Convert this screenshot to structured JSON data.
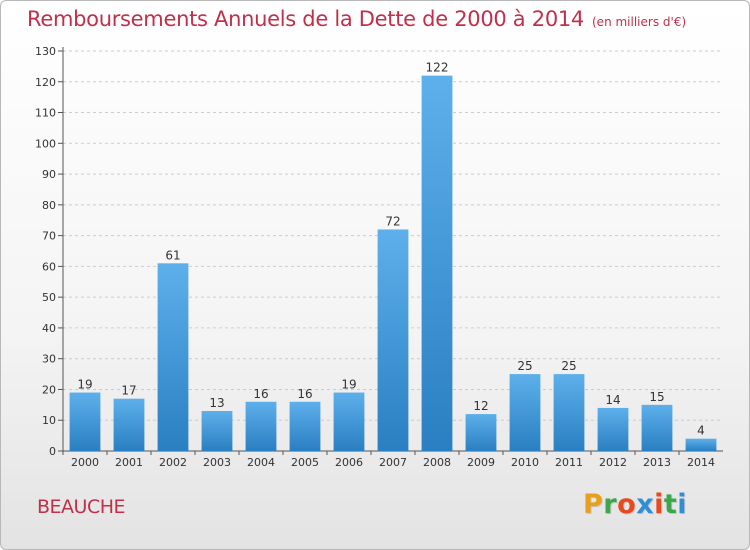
{
  "title": "Remboursements Annuels de la Dette de 2000 à 2014",
  "subtitle": "(en milliers d'€)",
  "commune": "BEAUCHE",
  "brand": {
    "letters": [
      "P",
      "r",
      "o",
      "x",
      "i",
      "t",
      "i"
    ],
    "colors": [
      "#e8a01c",
      "#3aa84a",
      "#e8491d",
      "#2e8fd6",
      "#e8491d",
      "#3aa84a",
      "#2e8fd6"
    ]
  },
  "colors": {
    "bar_top": "#5db0ea",
    "bar_bottom": "#2a7fc2",
    "grid": "#cccccc",
    "title": "#c0304a"
  },
  "chart_data": {
    "type": "bar",
    "categories": [
      "2000",
      "2001",
      "2002",
      "2003",
      "2004",
      "2005",
      "2006",
      "2007",
      "2008",
      "2009",
      "2010",
      "2011",
      "2012",
      "2013",
      "2014"
    ],
    "values": [
      19,
      17,
      61,
      13,
      16,
      16,
      19,
      72,
      122,
      12,
      25,
      25,
      14,
      15,
      4
    ],
    "ylim": [
      0,
      130
    ],
    "yticks": [
      0,
      10,
      20,
      30,
      40,
      50,
      60,
      70,
      80,
      90,
      100,
      110,
      120,
      130
    ],
    "grid": "horizontal dashed",
    "legend": "none"
  }
}
